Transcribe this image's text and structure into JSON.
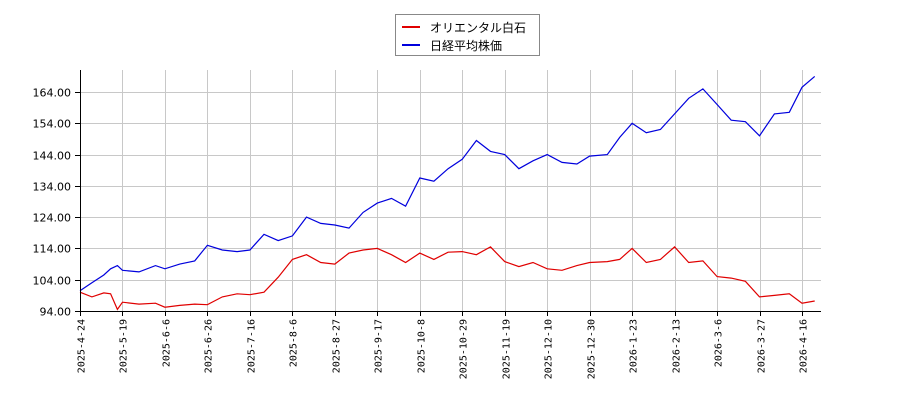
{
  "legend": {
    "items": [
      {
        "label": "オリエンタル白石",
        "color": "#e00000"
      },
      {
        "label": "日経平均株価",
        "color": "#0000dd"
      }
    ]
  },
  "chart_data": {
    "type": "line",
    "title": "",
    "xlabel": "",
    "ylabel": "",
    "ylim": [
      94,
      170
    ],
    "grid": true,
    "legend_position": "top-center",
    "y_ticks": [
      "94.00",
      "104.00",
      "114.00",
      "124.00",
      "134.00",
      "144.00",
      "154.00",
      "164.00"
    ],
    "x_ticks": [
      "2025-4-24",
      "2025-5-19",
      "2025-6-6",
      "2025-6-26",
      "2025-7-16",
      "2025-8-6",
      "2025-8-27",
      "2025-9-17",
      "2025-10-8",
      "2025-10-29",
      "2025-11-19",
      "2025-12-10",
      "2025-12-30",
      "2026-1-23",
      "2026-2-13",
      "2026-3-6",
      "2026-3-27",
      "2026-4-16"
    ],
    "x": [
      "2025-4-24",
      "2025-5-1",
      "2025-5-8",
      "2025-5-12",
      "2025-5-16",
      "2025-5-19",
      "2025-5-26",
      "2025-6-2",
      "2025-6-6",
      "2025-6-13",
      "2025-6-20",
      "2025-6-26",
      "2025-7-3",
      "2025-7-10",
      "2025-7-16",
      "2025-7-23",
      "2025-7-30",
      "2025-8-6",
      "2025-8-13",
      "2025-8-20",
      "2025-8-27",
      "2025-9-3",
      "2025-9-10",
      "2025-9-17",
      "2025-9-24",
      "2025-10-1",
      "2025-10-8",
      "2025-10-15",
      "2025-10-22",
      "2025-10-29",
      "2025-11-5",
      "2025-11-12",
      "2025-11-19",
      "2025-11-26",
      "2025-12-3",
      "2025-12-10",
      "2025-12-17",
      "2025-12-24",
      "2025-12-30",
      "2026-1-9",
      "2026-1-16",
      "2026-1-23",
      "2026-1-30",
      "2026-2-6",
      "2026-2-13",
      "2026-2-20",
      "2026-2-27",
      "2026-3-6",
      "2026-3-13",
      "2026-3-20",
      "2026-3-27",
      "2026-4-3",
      "2026-4-10",
      "2026-4-16",
      "2026-4-22"
    ],
    "series": [
      {
        "name": "オリエンタル白石",
        "color": "#e00000",
        "values": [
          100.0,
          98.5,
          99.8,
          99.5,
          94.5,
          96.8,
          96.2,
          96.5,
          95.2,
          95.8,
          96.2,
          96.0,
          98.5,
          99.5,
          99.2,
          100.0,
          104.8,
          110.5,
          112.0,
          109.5,
          109.0,
          112.5,
          113.5,
          114.0,
          112.0,
          109.5,
          112.5,
          110.5,
          112.8,
          113.0,
          112.0,
          114.5,
          109.8,
          108.2,
          109.5,
          107.5,
          107.0,
          108.5,
          109.5,
          109.8,
          110.5,
          114.0,
          109.5,
          110.5,
          114.5,
          109.5,
          110.0,
          105.0,
          104.5,
          103.5,
          98.5,
          99.0,
          99.5,
          96.5,
          97.2
        ]
      },
      {
        "name": "日経平均株価",
        "color": "#0000dd",
        "values": [
          100.5,
          103.0,
          105.5,
          107.5,
          108.5,
          107.0,
          106.5,
          108.5,
          107.5,
          109.0,
          110.0,
          115.0,
          113.5,
          113.0,
          113.5,
          118.5,
          116.5,
          118.0,
          124.0,
          122.0,
          121.5,
          120.5,
          125.5,
          128.5,
          130.0,
          127.5,
          136.5,
          135.5,
          139.5,
          142.5,
          148.5,
          145.0,
          144.0,
          139.5,
          142.0,
          144.0,
          141.5,
          141.0,
          143.5,
          144.0,
          149.5,
          154.0,
          151.0,
          152.0,
          157.0,
          162.0,
          165.0,
          160.0,
          155.0,
          154.5,
          150.0,
          157.0,
          157.5,
          165.5,
          169.0
        ]
      }
    ]
  }
}
